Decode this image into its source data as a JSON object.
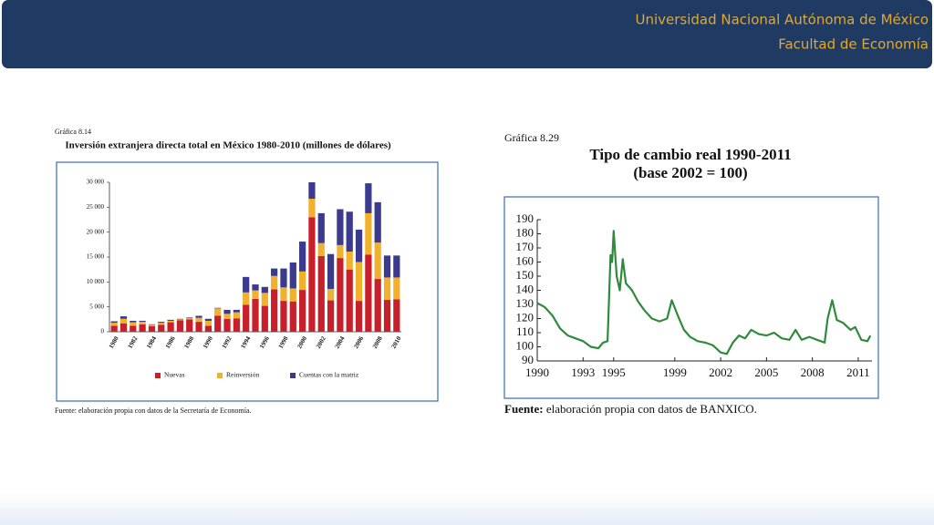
{
  "header": {
    "university": "Universidad Nacional Autónoma de México",
    "faculty": "Facultad de Economía"
  },
  "chart_data": [
    {
      "type": "bar",
      "stacked": true,
      "label": "Gráfica 8.14",
      "title": "Inversión extranjera directa total en México 1980-2010 (millones de dólares)",
      "source": "Fuente: elaboración propia con datos de la Secretaría de Economía.",
      "categories": [
        "1980",
        null,
        "1982",
        null,
        "1984",
        null,
        "1986",
        null,
        "1988",
        null,
        "1990",
        null,
        "1992",
        null,
        "1994",
        null,
        "1996",
        null,
        "1998",
        null,
        "2000",
        null,
        "2002",
        null,
        "2004",
        null,
        "2006",
        null,
        "2008",
        null,
        "2010"
      ],
      "series": [
        {
          "name": "Nuevas",
          "color": "#c8202a",
          "values": [
            1200,
            1700,
            1200,
            1500,
            1100,
            1400,
            1900,
            2300,
            2500,
            2000,
            1200,
            3200,
            2600,
            2700,
            5400,
            6600,
            5200,
            8500,
            6200,
            6100,
            8400,
            23000,
            15200,
            6300,
            14800,
            12500,
            6200,
            15500,
            10600,
            6400,
            6500
          ]
        },
        {
          "name": "Reinversión",
          "color": "#f2b12c",
          "values": [
            600,
            900,
            700,
            500,
            300,
            400,
            300,
            200,
            300,
            800,
            1000,
            1500,
            1000,
            1200,
            2500,
            1700,
            2600,
            2700,
            2700,
            2600,
            3700,
            3700,
            2600,
            2300,
            2600,
            3600,
            7800,
            8300,
            7300,
            4500,
            4400
          ]
        },
        {
          "name": "Cuentas con la matriz",
          "color": "#3b3a8e",
          "values": [
            300,
            500,
            300,
            200,
            100,
            200,
            200,
            100,
            100,
            400,
            400,
            100,
            800,
            500,
            3100,
            1200,
            1200,
            1500,
            3800,
            5200,
            6000,
            3300,
            6000,
            7000,
            7200,
            8000,
            6500,
            6000,
            8100,
            4400,
            4400
          ]
        }
      ],
      "ylim": [
        0,
        30000
      ],
      "yticks": [
        0,
        {
          "value": 5000,
          "label": "5 000"
        },
        {
          "value": 10000,
          "label": "10 000"
        },
        {
          "value": 15000,
          "label": "15 000"
        },
        {
          "value": 20000,
          "label": "20 000"
        },
        {
          "value": 25000,
          "label": "25 000"
        },
        {
          "value": 30000,
          "label": "30 000"
        }
      ],
      "legend": "bottom"
    },
    {
      "type": "line",
      "label": "Gráfica 8.29",
      "title": "Tipo de cambio real 1990-2011",
      "subtitle": "(base 2002 = 100)",
      "source_label": "Fuente:",
      "source": "elaboración propia con datos de BANXICO.",
      "color": "#2f8a3c",
      "x": [
        1990.0,
        1990.5,
        1991.0,
        1991.5,
        1992.0,
        1992.5,
        1993.0,
        1993.5,
        1994.0,
        1994.3,
        1994.6,
        1994.8,
        1994.9,
        1995.0,
        1995.2,
        1995.4,
        1995.6,
        1995.8,
        1996.2,
        1996.6,
        1997.0,
        1997.5,
        1998.0,
        1998.5,
        1998.8,
        1999.2,
        1999.6,
        2000.0,
        2000.5,
        2001.0,
        2001.5,
        2002.0,
        2002.4,
        2002.8,
        2003.2,
        2003.6,
        2004.0,
        2004.5,
        2005.0,
        2005.5,
        2006.0,
        2006.5,
        2006.9,
        2007.3,
        2007.8,
        2008.3,
        2008.8,
        2009.0,
        2009.3,
        2009.6,
        2010.0,
        2010.5,
        2010.8,
        2011.2,
        2011.6,
        2011.8
      ],
      "values": [
        131,
        128,
        122,
        113,
        108,
        106,
        104,
        100,
        99,
        103,
        104,
        165,
        160,
        182,
        150,
        140,
        162,
        145,
        140,
        132,
        126,
        120,
        118,
        120,
        133,
        122,
        112,
        107,
        104,
        103,
        101,
        96,
        95,
        103,
        108,
        106,
        112,
        109,
        108,
        110,
        106,
        105,
        112,
        105,
        107,
        105,
        103,
        120,
        133,
        119,
        117,
        112,
        114,
        105,
        104,
        108
      ],
      "xlim": [
        1990,
        2011.9
      ],
      "xticks": [
        1990,
        1993,
        1995,
        1999,
        2002,
        2005,
        2008,
        2011
      ],
      "ylim": [
        90,
        190
      ],
      "yticks": [
        90,
        100,
        110,
        120,
        130,
        140,
        150,
        160,
        170,
        180,
        190
      ]
    }
  ]
}
